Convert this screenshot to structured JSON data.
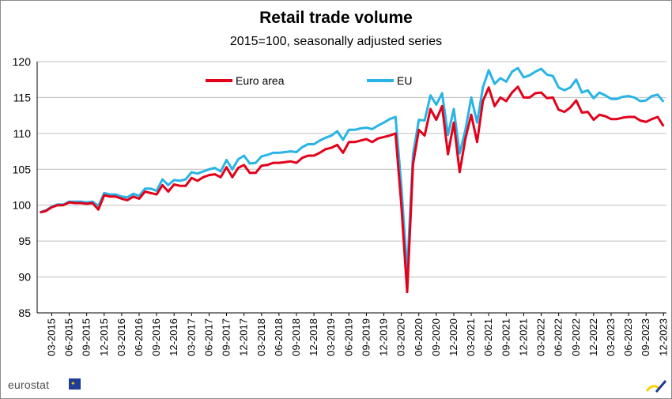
{
  "branding": {
    "logo_text": "eurostat",
    "logo_icon": "eu-flag-icon",
    "corner_icon": "eurostat-swoosh-icon"
  },
  "chart_data": {
    "type": "line",
    "title": "Retail trade volume",
    "subtitle": "2015=100, seasonally adjusted series",
    "xlabel": "",
    "ylabel": "",
    "ylim": [
      85,
      120
    ],
    "yticks": [
      85,
      90,
      95,
      100,
      105,
      110,
      115,
      120
    ],
    "grid": true,
    "legend_position": "top",
    "x_start": "01-2015",
    "x_end": "12-2023",
    "xtick_labels": [
      "03-2015",
      "06-2015",
      "09-2015",
      "12-2015",
      "03-2016",
      "06-2016",
      "09-2016",
      "12-2016",
      "03-2017",
      "06-2017",
      "09-2017",
      "12-2017",
      "03-2018",
      "06-2018",
      "09-2018",
      "12-2018",
      "03-2019",
      "06-2019",
      "09-2019",
      "12-2019",
      "03-2020",
      "06-2020",
      "09-2020",
      "12-2020",
      "03-2021",
      "06-2021",
      "09-2021",
      "12-2021",
      "03-2022",
      "06-2022",
      "09-2022",
      "12-2022",
      "03-2023",
      "06-2023",
      "09-2023",
      "12-2023"
    ],
    "series": [
      {
        "name": "Euro area",
        "color": "#e2001a",
        "values": [
          99.0,
          99.2,
          99.7,
          100.0,
          100.0,
          100.4,
          100.3,
          100.3,
          100.2,
          100.3,
          99.4,
          101.4,
          101.2,
          101.2,
          100.9,
          100.7,
          101.2,
          100.9,
          101.9,
          101.7,
          101.5,
          102.8,
          101.9,
          102.9,
          102.7,
          102.7,
          103.8,
          103.4,
          103.9,
          104.2,
          104.3,
          103.9,
          105.3,
          103.9,
          105.2,
          105.6,
          104.5,
          104.5,
          105.5,
          105.6,
          105.9,
          105.9,
          106.0,
          106.1,
          105.9,
          106.6,
          106.9,
          106.9,
          107.3,
          107.8,
          108.0,
          108.4,
          107.3,
          108.8,
          108.8,
          109.0,
          109.2,
          108.8,
          109.3,
          109.5,
          109.7,
          110.0,
          100.1,
          87.9,
          105.7,
          110.5,
          109.7,
          113.4,
          111.9,
          113.8,
          107.1,
          111.5,
          104.6,
          109.3,
          112.6,
          108.8,
          114.5,
          116.4,
          113.8,
          115.0,
          114.5,
          115.7,
          116.5,
          115.0,
          115.0,
          115.6,
          115.7,
          114.9,
          115.0,
          113.3,
          113.0,
          113.6,
          114.6,
          112.9,
          113.0,
          111.9,
          112.6,
          112.4,
          112.0,
          112.0,
          112.2,
          112.3,
          112.3,
          111.8,
          111.6,
          112.0,
          112.3,
          111.0
        ]
      },
      {
        "name": "EU",
        "color": "#28b4e6",
        "values": [
          99.0,
          99.3,
          99.8,
          100.1,
          100.1,
          100.5,
          100.5,
          100.5,
          100.4,
          100.5,
          99.9,
          101.7,
          101.5,
          101.5,
          101.2,
          101.1,
          101.6,
          101.3,
          102.3,
          102.3,
          102.0,
          103.6,
          102.8,
          103.5,
          103.4,
          103.6,
          104.6,
          104.4,
          104.7,
          105.0,
          105.2,
          104.7,
          106.3,
          105.0,
          106.4,
          106.9,
          105.8,
          105.9,
          106.8,
          107.0,
          107.3,
          107.3,
          107.4,
          107.5,
          107.4,
          108.1,
          108.5,
          108.5,
          109.0,
          109.4,
          109.7,
          110.3,
          109.1,
          110.5,
          110.5,
          110.7,
          110.8,
          110.6,
          111.1,
          111.5,
          112.0,
          112.3,
          102.8,
          90.6,
          107.0,
          111.9,
          111.8,
          115.3,
          114.0,
          115.6,
          109.8,
          113.4,
          107.2,
          110.5,
          115.0,
          111.5,
          116.4,
          118.8,
          116.9,
          117.7,
          117.2,
          118.6,
          119.1,
          117.8,
          118.1,
          118.6,
          119.0,
          118.2,
          118.0,
          116.4,
          116.0,
          116.4,
          117.5,
          115.7,
          116.0,
          114.9,
          115.7,
          115.3,
          114.8,
          114.8,
          115.1,
          115.2,
          115.0,
          114.5,
          114.6,
          115.2,
          115.4,
          114.4
        ]
      }
    ]
  }
}
